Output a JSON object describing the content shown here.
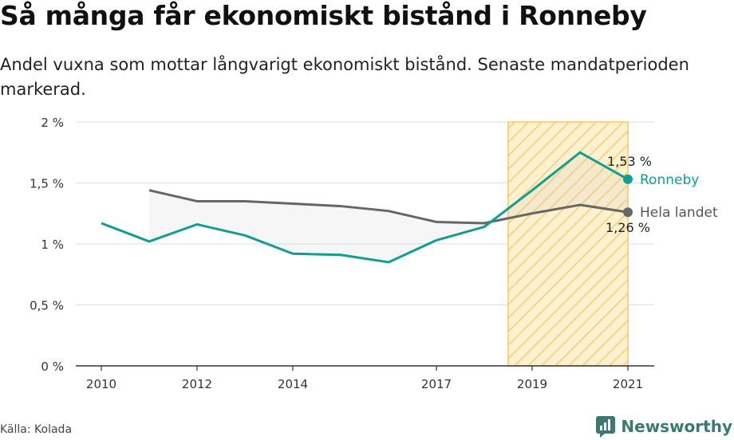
{
  "title": "Så många får ekonomiskt bistånd i Ronneby",
  "subtitle": "Andel vuxna som mottar långvarigt ekonomiskt bistånd. Senaste mandatperioden markerad.",
  "source": "Källa: Kolada",
  "brand": "Newsworthy",
  "chart_data": {
    "type": "line",
    "x_ticks": [
      2010,
      2012,
      2014,
      2017,
      2019,
      2021
    ],
    "xlim": [
      2010,
      2021
    ],
    "ylim": [
      0,
      2
    ],
    "y_ticks": [
      0,
      0.5,
      1,
      1.5,
      2
    ],
    "y_tick_labels": [
      "0 %",
      "0,5 %",
      "1 %",
      "1,5 %",
      "2 %"
    ],
    "highlight_period": [
      2018.5,
      2021
    ],
    "series": [
      {
        "name": "Ronneby",
        "color": "#119e91",
        "x": [
          2010,
          2011,
          2012,
          2013,
          2014,
          2015,
          2016,
          2017,
          2018,
          2019,
          2020,
          2021
        ],
        "values": [
          1.17,
          1.02,
          1.16,
          1.07,
          0.92,
          0.91,
          0.85,
          1.03,
          1.14,
          1.44,
          1.75,
          1.53
        ],
        "end_label": "1,53 %"
      },
      {
        "name": "Hela landet",
        "color": "#666666",
        "x": [
          2011,
          2012,
          2013,
          2014,
          2015,
          2016,
          2017,
          2018,
          2019,
          2020,
          2021
        ],
        "values": [
          1.44,
          1.35,
          1.35,
          1.33,
          1.31,
          1.27,
          1.18,
          1.17,
          1.25,
          1.32,
          1.26
        ],
        "end_label": "1,26 %"
      }
    ]
  }
}
